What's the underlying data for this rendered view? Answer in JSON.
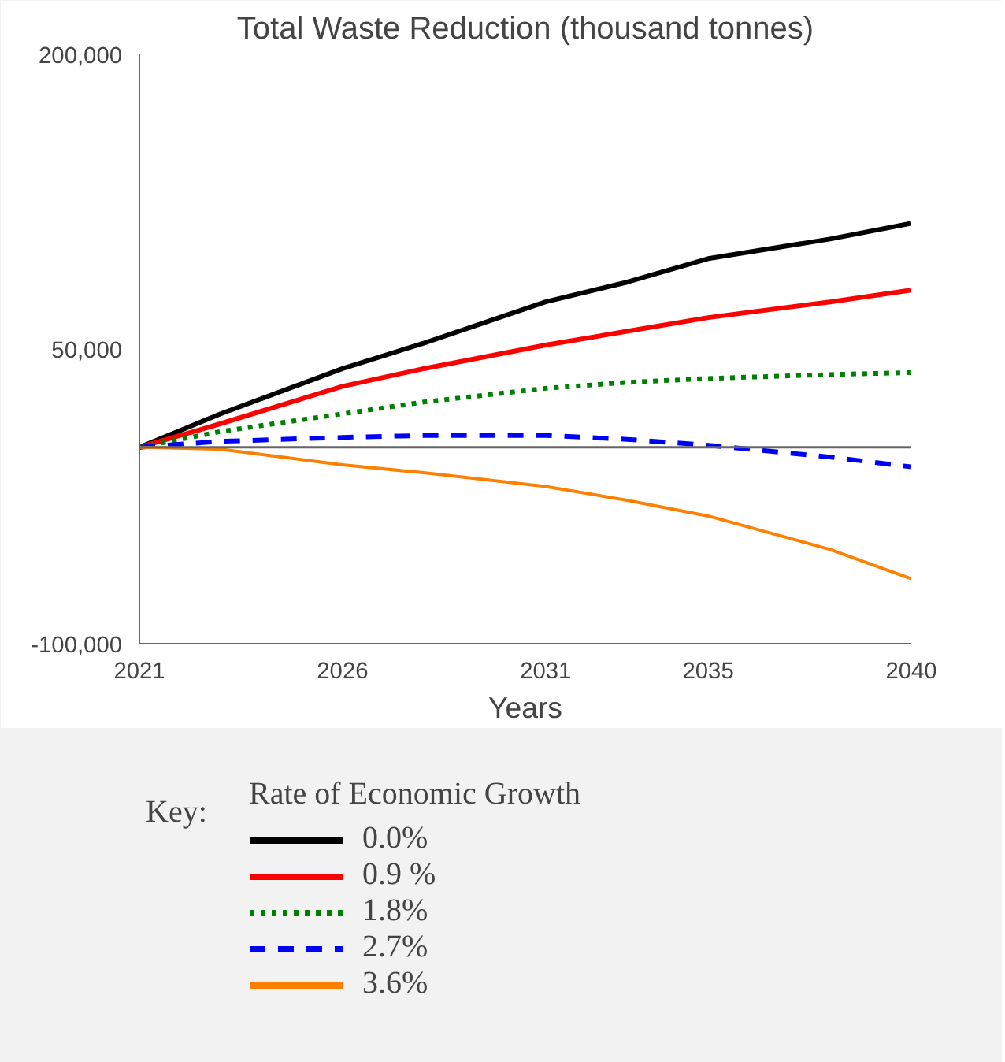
{
  "chart_data": {
    "type": "line",
    "title": "Total Waste Reduction (thousand tonnes)",
    "xlabel": "Years",
    "legend_title": "Rate of Economic Growth",
    "annotations": [
      "Key:"
    ],
    "x": [
      2021,
      2023,
      2026,
      2028,
      2031,
      2033,
      2035,
      2038,
      2040
    ],
    "series": [
      {
        "name": "0.0%",
        "color": "#000000",
        "line_style": "solid",
        "values": [
          0,
          17000,
          40000,
          53000,
          74000,
          84000,
          96000,
          106000,
          114000
        ]
      },
      {
        "name": "0.9 %",
        "color": "#ff0000",
        "line_style": "solid",
        "values": [
          0,
          12000,
          31000,
          40000,
          52000,
          59000,
          66000,
          74000,
          80000
        ]
      },
      {
        "name": "1.8%",
        "color": "#008000",
        "line_style": "dotted",
        "values": [
          0,
          8000,
          17000,
          23000,
          30000,
          33000,
          35000,
          37000,
          38000
        ]
      },
      {
        "name": "2.7%",
        "color": "#0000ff",
        "line_style": "dashed",
        "values": [
          0,
          3000,
          5000,
          6000,
          6000,
          4000,
          1000,
          -5000,
          -10000
        ]
      },
      {
        "name": "3.6%",
        "color": "#ff8000",
        "line_style": "solid",
        "values": [
          0,
          -1000,
          -9000,
          -13000,
          -20000,
          -27000,
          -35000,
          -52000,
          -67000
        ]
      }
    ],
    "xlim": [
      2021,
      2040
    ],
    "xticks": [
      2021,
      2026,
      2031,
      2035,
      2040
    ],
    "ylim": [
      -100000,
      200000
    ],
    "yticks": [
      {
        "value": -100000,
        "label": "-100,000"
      },
      {
        "value": 50000,
        "label": "50,000"
      },
      {
        "value": 200000,
        "label": "200,000"
      }
    ],
    "ref_lines": [
      {
        "axis": "y",
        "value": 0,
        "label": null,
        "color": "#666666"
      }
    ],
    "grid": false,
    "legend": "bottom"
  }
}
